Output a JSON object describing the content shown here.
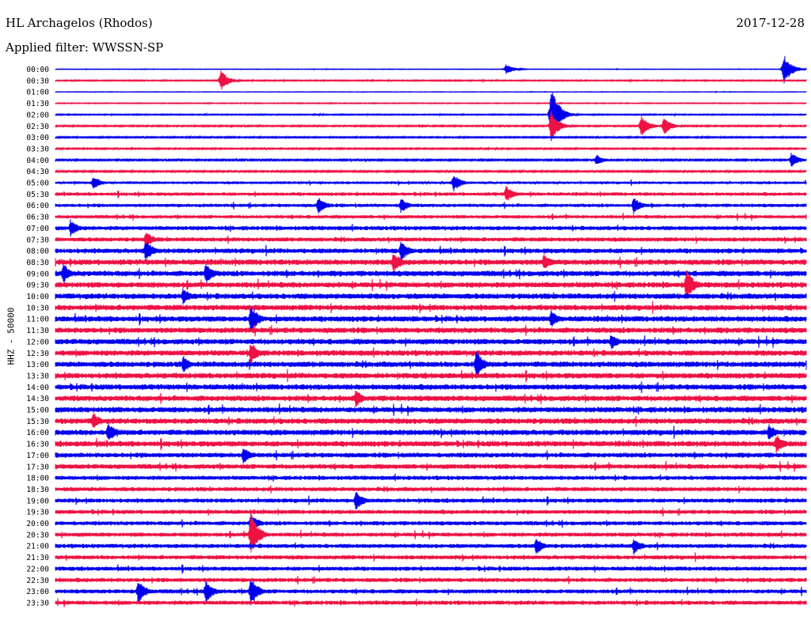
{
  "header": {
    "station": "HL Archagelos (Rhodos)",
    "date": "2017-12-28",
    "filter": "Applied filter: WWSSN-SP"
  },
  "chart_data": {
    "type": "line",
    "ylabel": "HHZ - 50000",
    "line_labels": [
      "00:00",
      "00:30",
      "01:00",
      "01:30",
      "02:00",
      "02:30",
      "03:00",
      "03:30",
      "04:00",
      "04:30",
      "05:00",
      "05:30",
      "06:00",
      "06:30",
      "07:00",
      "07:30",
      "08:00",
      "08:30",
      "09:00",
      "09:30",
      "10:00",
      "10:30",
      "11:00",
      "11:30",
      "12:00",
      "12:30",
      "13:00",
      "13:30",
      "14:00",
      "14:30",
      "15:00",
      "15:30",
      "16:00",
      "16:30",
      "17:00",
      "17:30",
      "18:00",
      "18:30",
      "19:00",
      "19:30",
      "20:00",
      "20:30",
      "21:00",
      "21:30",
      "22:00",
      "22:30",
      "23:00",
      "23:30"
    ],
    "colors": [
      "#0000ee",
      "#ee1144"
    ],
    "noise_level": [
      0.4,
      0.8,
      0.3,
      0.6,
      0.8,
      1.0,
      1.0,
      1.0,
      1.2,
      1.2,
      2.0,
      2.5,
      2.5,
      2.5,
      3.0,
      3.0,
      3.5,
      4.0,
      4.0,
      4.0,
      4.0,
      4.0,
      4.0,
      4.0,
      4.0,
      4.0,
      4.0,
      4.0,
      4.0,
      4.0,
      4.0,
      4.0,
      4.0,
      4.0,
      3.5,
      3.5,
      3.0,
      3.0,
      3.0,
      3.0,
      3.0,
      3.0,
      3.0,
      3.0,
      3.0,
      3.0,
      3.0,
      3.0
    ],
    "events": [
      {
        "line": 0,
        "t": 0.6,
        "amp": 7
      },
      {
        "line": 0,
        "t": 0.97,
        "amp": 20
      },
      {
        "line": 1,
        "t": 0.22,
        "amp": 14
      },
      {
        "line": 4,
        "t": 0.66,
        "amp": 40
      },
      {
        "line": 5,
        "t": 0.66,
        "amp": 20
      },
      {
        "line": 5,
        "t": 0.78,
        "amp": 15
      },
      {
        "line": 5,
        "t": 0.81,
        "amp": 12
      },
      {
        "line": 8,
        "t": 0.72,
        "amp": 8
      },
      {
        "line": 8,
        "t": 0.98,
        "amp": 10
      },
      {
        "line": 10,
        "t": 0.05,
        "amp": 10
      },
      {
        "line": 10,
        "t": 0.53,
        "amp": 12
      },
      {
        "line": 11,
        "t": 0.6,
        "amp": 12
      },
      {
        "line": 12,
        "t": 0.35,
        "amp": 12
      },
      {
        "line": 12,
        "t": 0.46,
        "amp": 10
      },
      {
        "line": 12,
        "t": 0.77,
        "amp": 12
      },
      {
        "line": 14,
        "t": 0.02,
        "amp": 12
      },
      {
        "line": 15,
        "t": 0.12,
        "amp": 12
      },
      {
        "line": 16,
        "t": 0.12,
        "amp": 15
      },
      {
        "line": 16,
        "t": 0.46,
        "amp": 15
      },
      {
        "line": 17,
        "t": 0.45,
        "amp": 15
      },
      {
        "line": 17,
        "t": 0.65,
        "amp": 12
      },
      {
        "line": 18,
        "t": 0.01,
        "amp": 14
      },
      {
        "line": 18,
        "t": 0.2,
        "amp": 15
      },
      {
        "line": 19,
        "t": 0.84,
        "amp": 22
      },
      {
        "line": 20,
        "t": 0.17,
        "amp": 12
      },
      {
        "line": 22,
        "t": 0.26,
        "amp": 20
      },
      {
        "line": 22,
        "t": 0.66,
        "amp": 12
      },
      {
        "line": 24,
        "t": 0.74,
        "amp": 12
      },
      {
        "line": 25,
        "t": 0.26,
        "amp": 16
      },
      {
        "line": 26,
        "t": 0.17,
        "amp": 12
      },
      {
        "line": 26,
        "t": 0.56,
        "amp": 20
      },
      {
        "line": 29,
        "t": 0.4,
        "amp": 12
      },
      {
        "line": 31,
        "t": 0.05,
        "amp": 12
      },
      {
        "line": 32,
        "t": 0.07,
        "amp": 14
      },
      {
        "line": 32,
        "t": 0.95,
        "amp": 12
      },
      {
        "line": 33,
        "t": 0.96,
        "amp": 14
      },
      {
        "line": 34,
        "t": 0.25,
        "amp": 12
      },
      {
        "line": 38,
        "t": 0.4,
        "amp": 14
      },
      {
        "line": 40,
        "t": 0.26,
        "amp": 14
      },
      {
        "line": 41,
        "t": 0.26,
        "amp": 30
      },
      {
        "line": 42,
        "t": 0.64,
        "amp": 12
      },
      {
        "line": 42,
        "t": 0.77,
        "amp": 12
      },
      {
        "line": 46,
        "t": 0.11,
        "amp": 16
      },
      {
        "line": 46,
        "t": 0.2,
        "amp": 16
      },
      {
        "line": 46,
        "t": 0.26,
        "amp": 20
      }
    ]
  }
}
